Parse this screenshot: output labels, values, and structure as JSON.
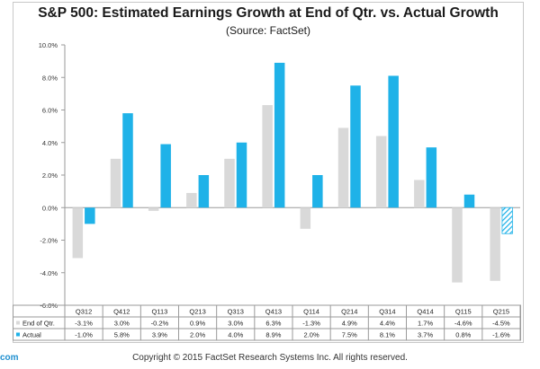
{
  "title": "S&P 500: Estimated Earnings Growth at End of Qtr. vs. Actual Growth",
  "subtitle": "(Source: FactSet)",
  "footer": {
    "left_fragment": "com",
    "copyright": "Copyright © 2015 FactSet Research Systems Inc. All rights reserved."
  },
  "colors": {
    "end_of_qtr": "#d9d9d9",
    "actual": "#1fb2e8",
    "actual_estimated": "#1fb2e8"
  },
  "chart_data": {
    "type": "bar",
    "title": "S&P 500: Estimated Earnings Growth at End of Qtr. vs. Actual Growth",
    "subtitle": "(Source: FactSet)",
    "categories": [
      "Q312",
      "Q412",
      "Q113",
      "Q213",
      "Q313",
      "Q413",
      "Q114",
      "Q214",
      "Q314",
      "Q414",
      "Q115",
      "Q215"
    ],
    "series": [
      {
        "name": "End of Qtr.",
        "values": [
          -3.1,
          3.0,
          -0.2,
          0.9,
          3.0,
          6.3,
          -1.3,
          4.9,
          4.4,
          1.7,
          -4.6,
          -4.5
        ]
      },
      {
        "name": "Actual",
        "values": [
          -1.0,
          5.8,
          3.9,
          2.0,
          4.0,
          8.9,
          2.0,
          7.5,
          8.1,
          3.7,
          0.8,
          -1.6
        ]
      }
    ],
    "table_labels": {
      "End of Qtr.": [
        "-3.1%",
        "3.0%",
        "-0.2%",
        "0.9%",
        "3.0%",
        "6.3%",
        "-1.3%",
        "4.9%",
        "4.4%",
        "1.7%",
        "-4.6%",
        "-4.5%"
      ],
      "Actual": [
        "-1.0%",
        "5.8%",
        "3.9%",
        "2.0%",
        "4.0%",
        "8.9%",
        "2.0%",
        "7.5%",
        "8.1%",
        "3.7%",
        "0.8%",
        "-1.6%"
      ]
    },
    "yticks": [
      -6,
      -4,
      -2,
      0,
      2,
      4,
      6,
      8,
      10
    ],
    "ytick_labels": [
      "-6.0%",
      "-4.0%",
      "-2.0%",
      "0.0%",
      "2.0%",
      "4.0%",
      "6.0%",
      "8.0%",
      "10.0%"
    ],
    "ylim": [
      -6,
      10
    ],
    "grid": false,
    "legend": "data-table-rows",
    "hatched_last_actual": true
  }
}
